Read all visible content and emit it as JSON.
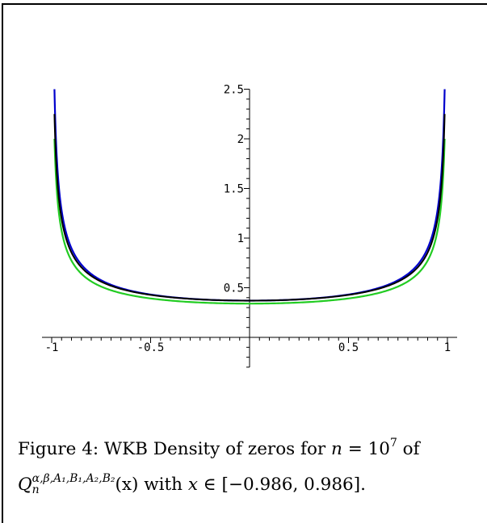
{
  "chart_data": {
    "type": "line",
    "xlim": [
      -1.0,
      1.0
    ],
    "ylim": [
      0,
      2.5
    ],
    "x_ticks": [
      {
        "value": -1,
        "label": "-1"
      },
      {
        "value": -0.5,
        "label": "-0.5"
      },
      {
        "value": 0.5,
        "label": "0.5"
      },
      {
        "value": 1,
        "label": "1"
      }
    ],
    "y_ticks": [
      {
        "value": 0.5,
        "label": "0.5"
      },
      {
        "value": 1,
        "label": "1"
      },
      {
        "value": 1.5,
        "label": "1.5"
      },
      {
        "value": 2,
        "label": "2"
      },
      {
        "value": 2.5,
        "label": "2.5"
      }
    ],
    "grid": false,
    "series": [
      {
        "color": "#22cc22",
        "x_range": [
          -0.986,
          0.986
        ],
        "y_at_0": 0.34,
        "y_at_edge": 2.0
      },
      {
        "color": "#0000cc",
        "x_range": [
          -0.986,
          0.986
        ],
        "y_at_0": 0.37,
        "y_at_edge": 2.5
      },
      {
        "color": "#000000",
        "x_range": [
          -0.986,
          0.986
        ],
        "y_at_0": 0.37,
        "y_at_edge": 2.25
      }
    ]
  },
  "caption": {
    "part1": "Figure 4:  WKB Density of zeros for ",
    "n_var": "n",
    "equals": " = 10",
    "exp": "7",
    "of": " of",
    "Q": "Q",
    "Q_sub": "n",
    "Q_sup": "α,β,A₁,B₁,A₂,B₂",
    "arg": "(x)",
    "with": " with ",
    "x_var": "x",
    "interval": " ∈ [−0.986, 0.986]."
  }
}
